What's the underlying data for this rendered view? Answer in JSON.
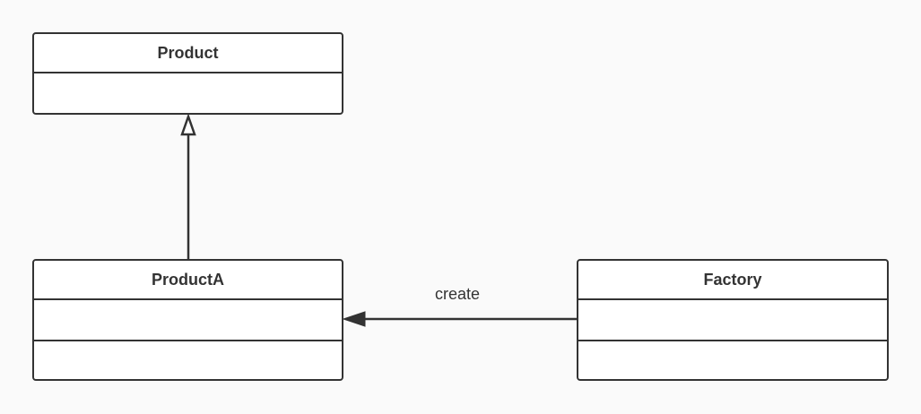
{
  "diagram": {
    "classes": {
      "product": {
        "name": "Product"
      },
      "product_a": {
        "name": "ProductA"
      },
      "factory": {
        "name": "Factory"
      }
    },
    "relations": {
      "generalization": {
        "from": "ProductA",
        "to": "Product",
        "kind": "generalization"
      },
      "creation": {
        "from": "Factory",
        "to": "ProductA",
        "kind": "dependency",
        "label": "create"
      }
    },
    "colors": {
      "stroke": "#333333",
      "background": "#fafafa",
      "box_fill": "#ffffff"
    }
  }
}
